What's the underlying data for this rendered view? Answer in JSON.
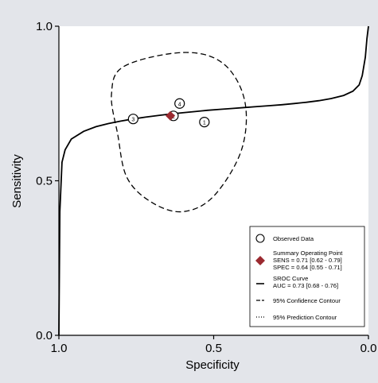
{
  "chart_data": {
    "type": "scatter",
    "title": "",
    "xlabel": "Specificity",
    "ylabel": "Sensitivity",
    "xlim": [
      1.0,
      0.0
    ],
    "ylim": [
      0.0,
      1.0
    ],
    "x_reversed": true,
    "x_ticks": [
      1.0,
      0.5,
      0.0
    ],
    "x_tick_labels": [
      "1.0",
      "0.5",
      "0.0"
    ],
    "y_ticks": [
      0.0,
      0.5,
      1.0
    ],
    "y_tick_labels": [
      "0.0",
      "0.5",
      "1.0"
    ],
    "grid": false,
    "legend_placement": "bottom-right",
    "colors": {
      "background": "#e3e5ea",
      "plot_area": "#ffffff",
      "lines": "#000000",
      "summary_point": "#9b2a30"
    },
    "observed_studies": [
      {
        "label": "3",
        "specificity": 0.76,
        "sensitivity": 0.7
      },
      {
        "label": "2",
        "specificity": 0.63,
        "sensitivity": 0.71
      },
      {
        "label": "4",
        "specificity": 0.61,
        "sensitivity": 0.75
      },
      {
        "label": "1",
        "specificity": 0.53,
        "sensitivity": 0.69
      }
    ],
    "summary_point": {
      "specificity": 0.64,
      "sensitivity": 0.71
    },
    "sroc_curve": [
      [
        1.0,
        0.0
      ],
      [
        0.997,
        0.4
      ],
      [
        0.99,
        0.56
      ],
      [
        0.98,
        0.6
      ],
      [
        0.96,
        0.635
      ],
      [
        0.92,
        0.66
      ],
      [
        0.88,
        0.675
      ],
      [
        0.84,
        0.685
      ],
      [
        0.8,
        0.693
      ],
      [
        0.76,
        0.7
      ],
      [
        0.72,
        0.706
      ],
      [
        0.68,
        0.711
      ],
      [
        0.64,
        0.716
      ],
      [
        0.6,
        0.72
      ],
      [
        0.56,
        0.724
      ],
      [
        0.52,
        0.728
      ],
      [
        0.48,
        0.731
      ],
      [
        0.44,
        0.734
      ],
      [
        0.4,
        0.737
      ],
      [
        0.36,
        0.74
      ],
      [
        0.32,
        0.743
      ],
      [
        0.28,
        0.746
      ],
      [
        0.24,
        0.75
      ],
      [
        0.2,
        0.754
      ],
      [
        0.16,
        0.759
      ],
      [
        0.12,
        0.766
      ],
      [
        0.08,
        0.776
      ],
      [
        0.05,
        0.79
      ],
      [
        0.03,
        0.81
      ],
      [
        0.02,
        0.84
      ],
      [
        0.01,
        0.9
      ],
      [
        0.005,
        0.96
      ],
      [
        0.0,
        1.0
      ]
    ],
    "confidence_contour": [
      [
        0.79,
        0.87
      ],
      [
        0.6,
        0.915
      ],
      [
        0.47,
        0.88
      ],
      [
        0.4,
        0.76
      ],
      [
        0.41,
        0.6
      ],
      [
        0.5,
        0.45
      ],
      [
        0.6,
        0.4
      ],
      [
        0.7,
        0.43
      ],
      [
        0.78,
        0.51
      ],
      [
        0.81,
        0.65
      ],
      [
        0.83,
        0.78
      ]
    ],
    "legend": [
      {
        "marker": "open-circle",
        "lines": [
          "Observed Data"
        ]
      },
      {
        "marker": "diamond",
        "lines": [
          "Summary Operating Point",
          "SENS = 0.71 [0.62 - 0.79]",
          "SPEC = 0.64 [0.55 - 0.71]"
        ]
      },
      {
        "marker": "solid-line",
        "lines": [
          "SROC Curve",
          "AUC = 0.73 [0.68 - 0.76]"
        ]
      },
      {
        "marker": "dashed-line",
        "lines": [
          "95% Confidence Contour"
        ]
      },
      {
        "marker": "dotted-line",
        "lines": [
          "95% Prediction Contour"
        ]
      }
    ]
  }
}
